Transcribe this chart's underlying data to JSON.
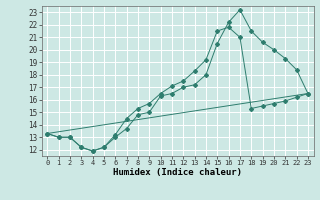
{
  "xlabel": "Humidex (Indice chaleur)",
  "background_color": "#cde8e4",
  "grid_color": "#ffffff",
  "line_color": "#2e7d6e",
  "xlim": [
    -0.5,
    23.5
  ],
  "ylim": [
    11.5,
    23.5
  ],
  "xticks": [
    0,
    1,
    2,
    3,
    4,
    5,
    6,
    7,
    8,
    9,
    10,
    11,
    12,
    13,
    14,
    15,
    16,
    17,
    18,
    19,
    20,
    21,
    22,
    23
  ],
  "yticks": [
    12,
    13,
    14,
    15,
    16,
    17,
    18,
    19,
    20,
    21,
    22,
    23
  ],
  "line1_x": [
    0,
    1,
    2,
    3,
    4,
    5,
    6,
    7,
    8,
    9,
    10,
    11,
    12,
    13,
    14,
    15,
    16,
    17,
    18,
    19,
    20,
    21,
    22,
    23
  ],
  "line1_y": [
    13.3,
    13.0,
    13.0,
    12.2,
    11.9,
    12.2,
    13.0,
    13.7,
    14.8,
    15.0,
    16.3,
    16.5,
    17.0,
    17.2,
    18.0,
    20.5,
    22.2,
    23.2,
    21.5,
    20.6,
    20.0,
    19.3,
    18.4,
    16.5
  ],
  "line2_x": [
    0,
    1,
    2,
    3,
    4,
    5,
    6,
    7,
    8,
    9,
    10,
    11,
    12,
    13,
    14,
    15,
    16,
    17,
    18,
    19,
    20,
    21,
    22,
    23
  ],
  "line2_y": [
    13.3,
    13.0,
    13.0,
    12.2,
    11.9,
    12.2,
    13.2,
    14.5,
    15.3,
    15.7,
    16.5,
    17.1,
    17.5,
    18.3,
    19.2,
    21.5,
    21.8,
    21.0,
    15.3,
    15.5,
    15.7,
    15.9,
    16.2,
    16.5
  ],
  "line3_x": [
    0,
    23
  ],
  "line3_y": [
    13.3,
    16.5
  ]
}
